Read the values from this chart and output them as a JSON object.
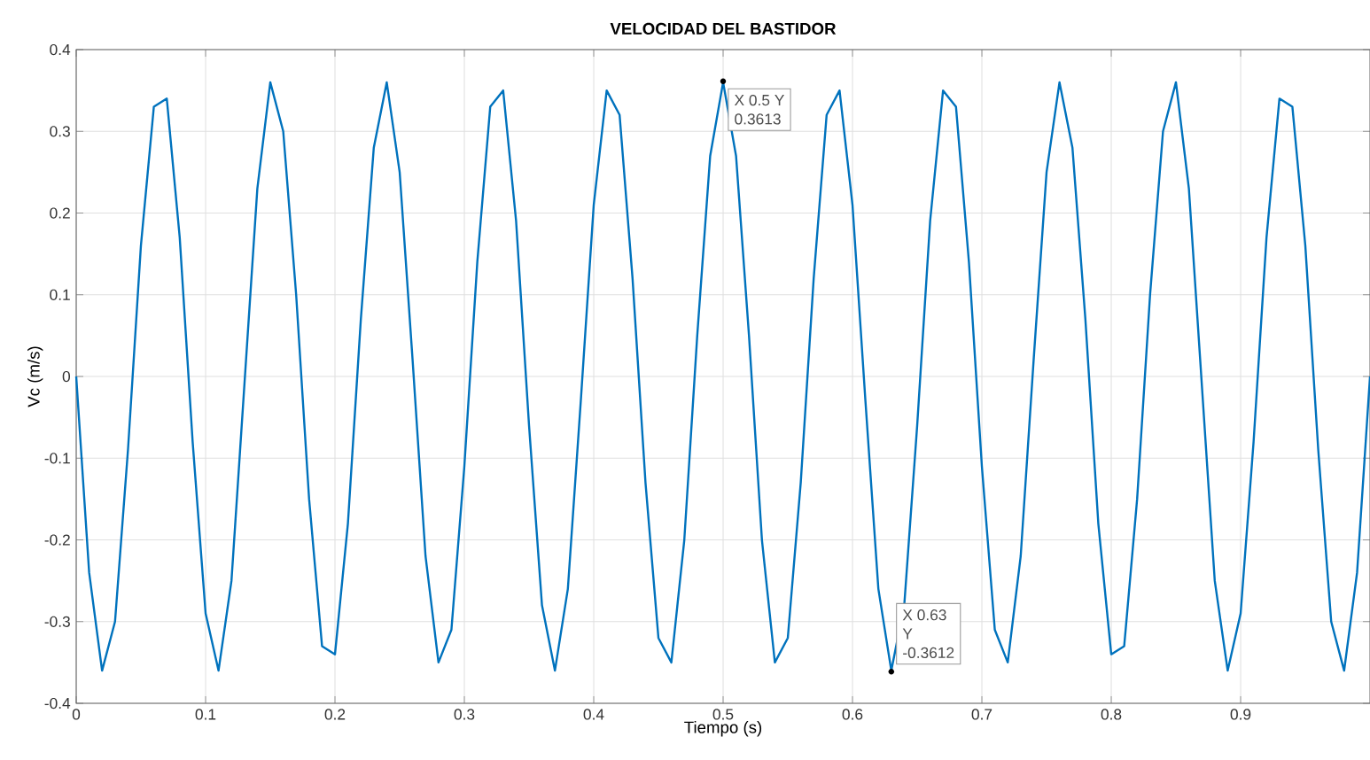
{
  "chart_data": {
    "type": "line",
    "title": "VELOCIDAD DEL BASTIDOR",
    "xlabel": "Tiempo (s)",
    "ylabel": "Vc (m/s)",
    "x": [
      0,
      0.01,
      0.02,
      0.03,
      0.04,
      0.05,
      0.06,
      0.07,
      0.08,
      0.09,
      0.1,
      0.11,
      0.12,
      0.13,
      0.14,
      0.15,
      0.16,
      0.17,
      0.18,
      0.19,
      0.2,
      0.21,
      0.22,
      0.23,
      0.24,
      0.25,
      0.26,
      0.27,
      0.28,
      0.29,
      0.3,
      0.31,
      0.32,
      0.33,
      0.34,
      0.35,
      0.36,
      0.37,
      0.38,
      0.39,
      0.4,
      0.41,
      0.42,
      0.43,
      0.44,
      0.45,
      0.46,
      0.47,
      0.48,
      0.49,
      0.5,
      0.51,
      0.52,
      0.53,
      0.54,
      0.55,
      0.56,
      0.57,
      0.58,
      0.59,
      0.6,
      0.61,
      0.62,
      0.63,
      0.64,
      0.65,
      0.66,
      0.67,
      0.68,
      0.69,
      0.7,
      0.71,
      0.72,
      0.73,
      0.74,
      0.75,
      0.76,
      0.77,
      0.78,
      0.79,
      0.8,
      0.81,
      0.82,
      0.83,
      0.84,
      0.85,
      0.86,
      0.87,
      0.88,
      0.89,
      0.9,
      0.91,
      0.92,
      0.93,
      0.94,
      0.95,
      0.96,
      0.97,
      0.98,
      0.99,
      1
    ],
    "series": [
      {
        "color": "#0072bd",
        "values": [
          0,
          -0.24,
          -0.36,
          -0.3,
          -0.09,
          0.16,
          0.33,
          0.34,
          0.17,
          -0.08,
          -0.29,
          -0.36,
          -0.25,
          -0.01,
          0.23,
          0.36,
          0.3,
          0.1,
          -0.15,
          -0.33,
          -0.34,
          -0.18,
          0.07,
          0.28,
          0.36,
          0.25,
          0.02,
          -0.22,
          -0.35,
          -0.31,
          -0.11,
          0.14,
          0.33,
          0.35,
          0.19,
          -0.06,
          -0.28,
          -0.36,
          -0.26,
          -0.03,
          0.21,
          0.35,
          0.32,
          0.12,
          -0.13,
          -0.32,
          -0.35,
          -0.2,
          0.05,
          0.27,
          0.36,
          0.27,
          0.05,
          -0.2,
          -0.35,
          -0.32,
          -0.13,
          0.12,
          0.32,
          0.35,
          0.21,
          -0.03,
          -0.26,
          -0.36,
          -0.28,
          -0.06,
          0.19,
          0.35,
          0.33,
          0.14,
          -0.11,
          -0.31,
          -0.35,
          -0.22,
          0.02,
          0.25,
          0.36,
          0.28,
          0.07,
          -0.18,
          -0.34,
          -0.33,
          -0.15,
          0.1,
          0.3,
          0.36,
          0.23,
          -0.01,
          -0.25,
          -0.36,
          -0.29,
          -0.08,
          0.17,
          0.34,
          0.33,
          0.16,
          -0.09,
          -0.3,
          -0.36,
          -0.24,
          0
        ]
      }
    ],
    "xlim": [
      0,
      1
    ],
    "ylim": [
      -0.4,
      0.4
    ],
    "xticks": [
      0,
      0.1,
      0.2,
      0.3,
      0.4,
      0.5,
      0.6,
      0.7,
      0.8,
      0.9
    ],
    "yticks": [
      -0.4,
      -0.3,
      -0.2,
      -0.1,
      0,
      0.1,
      0.2,
      0.3,
      0.4
    ],
    "grid": true,
    "marker": "none",
    "line_style": "solid",
    "annotations": [
      {
        "text": "X 0.5 Y 0.3613",
        "x": 0.5,
        "y": 0.3613
      },
      {
        "text": "X 0.63 Y -0.3612",
        "x": 0.63,
        "y": -0.3612
      }
    ]
  }
}
